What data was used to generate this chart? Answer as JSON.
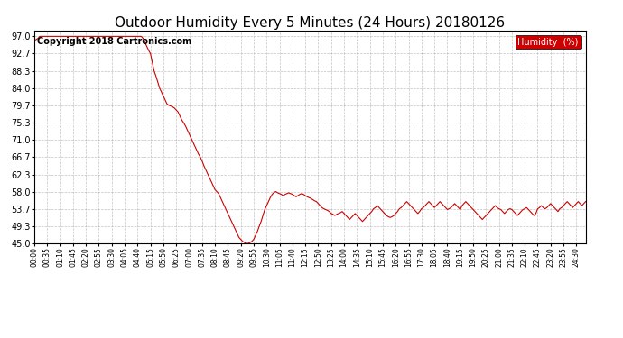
{
  "title": "Outdoor Humidity Every 5 Minutes (24 Hours) 20180126",
  "copyright_text": "Copyright 2018 Cartronics.com",
  "legend_label": "Humidity  (%)",
  "line_color": "#cc0000",
  "legend_bg": "#cc0000",
  "legend_text_color": "#ffffff",
  "background_color": "#ffffff",
  "grid_color": "#aaaaaa",
  "ylim": [
    45.0,
    98.5
  ],
  "yticks": [
    45.0,
    49.3,
    53.7,
    58.0,
    62.3,
    66.7,
    71.0,
    75.3,
    79.7,
    84.0,
    88.3,
    92.7,
    97.0
  ],
  "title_fontsize": 11,
  "copyright_fontsize": 7,
  "humidity_data": [
    96.0,
    96.2,
    96.5,
    97.0,
    97.0,
    97.0,
    97.0,
    97.0,
    97.0,
    97.0,
    97.0,
    97.0,
    97.0,
    97.0,
    97.0,
    97.0,
    97.0,
    97.0,
    97.0,
    97.0,
    97.0,
    97.0,
    97.0,
    97.0,
    97.0,
    97.0,
    97.0,
    97.0,
    97.0,
    97.0,
    97.0,
    97.0,
    97.0,
    97.0,
    97.0,
    97.0,
    97.0,
    97.0,
    97.0,
    97.0,
    97.0,
    97.0,
    97.0,
    97.0,
    97.0,
    97.0,
    97.0,
    97.0,
    97.0,
    97.0,
    97.0,
    97.0,
    97.0,
    97.0,
    97.0,
    97.0,
    97.0,
    97.0,
    97.0,
    96.5,
    95.5,
    94.5,
    93.5,
    92.7,
    90.5,
    88.3,
    87.0,
    85.5,
    84.0,
    83.0,
    82.0,
    81.0,
    80.0,
    79.7,
    79.5,
    79.3,
    79.0,
    78.5,
    78.0,
    77.0,
    76.0,
    75.3,
    74.5,
    73.5,
    72.5,
    71.5,
    70.5,
    69.5,
    68.5,
    67.5,
    66.7,
    65.7,
    64.5,
    63.5,
    62.5,
    61.5,
    60.5,
    59.5,
    58.5,
    58.0,
    57.5,
    56.5,
    55.5,
    54.5,
    53.5,
    52.5,
    51.5,
    50.5,
    49.5,
    48.5,
    47.5,
    46.5,
    46.0,
    45.5,
    45.2,
    45.0,
    45.0,
    45.2,
    45.5,
    46.0,
    47.0,
    48.0,
    49.3,
    50.5,
    52.0,
    53.5,
    54.5,
    55.5,
    56.5,
    57.3,
    57.8,
    58.0,
    57.7,
    57.5,
    57.3,
    57.0,
    57.3,
    57.5,
    57.7,
    57.5,
    57.3,
    57.0,
    56.7,
    57.0,
    57.3,
    57.5,
    57.3,
    57.0,
    56.7,
    56.5,
    56.3,
    56.0,
    55.7,
    55.5,
    55.0,
    54.5,
    54.0,
    53.7,
    53.5,
    53.3,
    53.0,
    52.5,
    52.3,
    52.0,
    52.3,
    52.5,
    52.7,
    53.0,
    52.5,
    52.0,
    51.5,
    51.0,
    51.5,
    52.0,
    52.5,
    52.0,
    51.5,
    51.0,
    50.5,
    51.0,
    51.5,
    52.0,
    52.5,
    53.0,
    53.7,
    54.0,
    54.5,
    54.0,
    53.5,
    53.0,
    52.5,
    52.0,
    51.7,
    51.5,
    51.7,
    52.0,
    52.5,
    53.0,
    53.7,
    54.0,
    54.5,
    55.0,
    55.5,
    55.0,
    54.5,
    54.0,
    53.5,
    53.0,
    52.5,
    53.0,
    53.7,
    54.0,
    54.5,
    55.0,
    55.5,
    55.0,
    54.5,
    54.0,
    54.5,
    55.0,
    55.5,
    55.0,
    54.5,
    54.0,
    53.5,
    53.7,
    54.0,
    54.5,
    55.0,
    54.5,
    54.0,
    53.5,
    54.5,
    55.0,
    55.5,
    55.0,
    54.5,
    54.0,
    53.5,
    53.0,
    52.5,
    52.0,
    51.5,
    51.0,
    51.5,
    52.0,
    52.5,
    53.0,
    53.5,
    54.0,
    54.5,
    54.0,
    53.7,
    53.5,
    53.0,
    52.5,
    53.0,
    53.5,
    53.7,
    53.5,
    53.0,
    52.5,
    52.0,
    52.5,
    53.0,
    53.5,
    53.7,
    54.0,
    53.5,
    53.0,
    52.5,
    52.0,
    52.5,
    53.7,
    54.0,
    54.5,
    54.0,
    53.7,
    54.0,
    54.5,
    55.0,
    54.5,
    54.0,
    53.5,
    53.0,
    53.7,
    54.0,
    54.5,
    55.0,
    55.5,
    55.0,
    54.5,
    54.0,
    54.5,
    55.0,
    55.5,
    55.0,
    54.5,
    55.0,
    55.5
  ],
  "x_tick_step_min": 35
}
